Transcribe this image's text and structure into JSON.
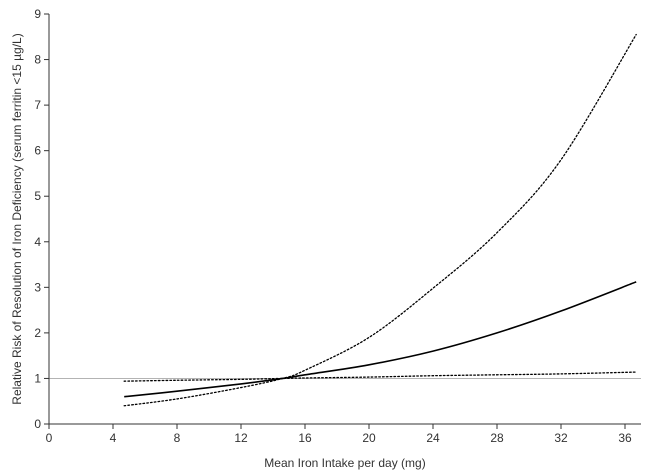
{
  "chart_data": {
    "type": "line",
    "title": "",
    "xlabel": "Mean Iron Intake per day (mg)",
    "ylabel": "Relative Risk of Resolution of Iron Deficiency (serum ferritin <15 µg/L)",
    "xlim": [
      0,
      37
    ],
    "ylim": [
      0,
      9
    ],
    "xticks": [
      0,
      4,
      8,
      12,
      16,
      20,
      24,
      28,
      32,
      36
    ],
    "yticks": [
      0,
      1,
      2,
      3,
      4,
      5,
      6,
      7,
      8,
      9
    ],
    "xtick_labels": [
      "0",
      "4",
      "8",
      "12",
      "16",
      "20",
      "24",
      "28",
      "32",
      "36"
    ],
    "ytick_labels": [
      "0",
      "1",
      "2",
      "3",
      "4",
      "5",
      "6",
      "7",
      "8",
      "9"
    ],
    "reference_line": {
      "y": 1,
      "color": "#b3b3b3"
    },
    "grid": false,
    "series": [
      {
        "style": "solid",
        "color": "#000000",
        "x": [
          4.7,
          8,
          12,
          14.6,
          16,
          20,
          24,
          28,
          32,
          36.7
        ],
        "y": [
          0.6,
          0.72,
          0.88,
          1.0,
          1.08,
          1.3,
          1.6,
          2.0,
          2.48,
          3.12
        ]
      },
      {
        "style": "dotted",
        "color": "#000000",
        "x": [
          4.7,
          8,
          12,
          14.6,
          16,
          20,
          24,
          28,
          32,
          36.7
        ],
        "y": [
          0.4,
          0.55,
          0.8,
          1.0,
          1.18,
          1.9,
          2.98,
          4.2,
          5.8,
          8.55
        ]
      },
      {
        "style": "dotted",
        "color": "#000000",
        "x": [
          4.7,
          8,
          12,
          14.6,
          16,
          20,
          24,
          28,
          32,
          36.7
        ],
        "y": [
          0.94,
          0.96,
          0.98,
          1.0,
          1.01,
          1.03,
          1.06,
          1.08,
          1.1,
          1.14
        ]
      }
    ]
  }
}
